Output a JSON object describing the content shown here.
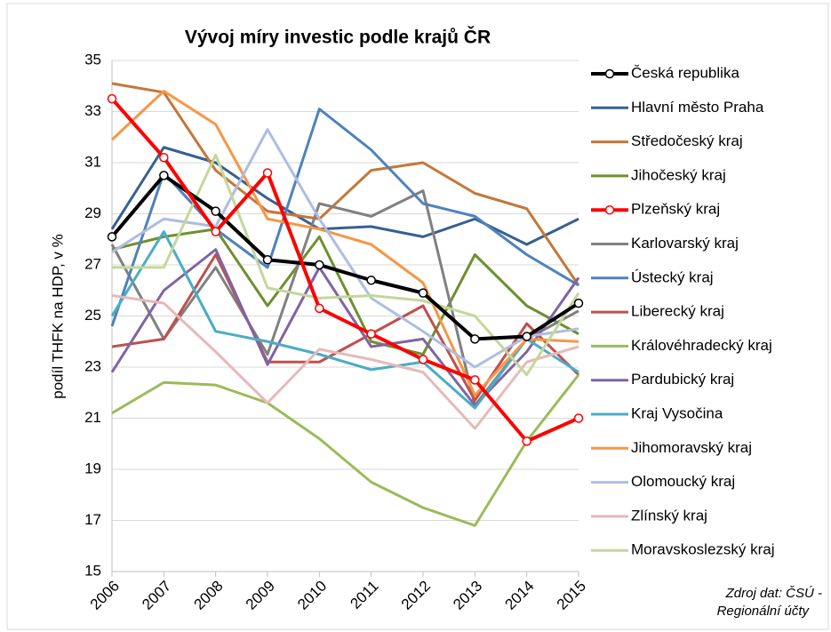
{
  "chart_data": {
    "type": "line",
    "title": "Vývoj míry investic podle krajů ČR",
    "y_label": "podíl THFK na HDP, v %",
    "source": [
      "Zdroj dat: ČSÚ -",
      "Regionální účty"
    ],
    "categories": [
      "2006",
      "2007",
      "2008",
      "2009",
      "2010",
      "2011",
      "2012",
      "2013",
      "2014",
      "2015"
    ],
    "ylim": [
      15,
      35
    ],
    "yticks": [
      15,
      17,
      19,
      21,
      23,
      25,
      27,
      29,
      31,
      33,
      35
    ],
    "grid": true,
    "legend": "right",
    "series": [
      {
        "name": "Česká republika",
        "color": "#000000",
        "marker": "circle",
        "values": [
          28.1,
          30.5,
          29.1,
          27.2,
          27.0,
          26.4,
          25.9,
          24.1,
          24.2,
          25.5
        ]
      },
      {
        "name": "Hlavní město Praha",
        "color": "#376092",
        "values": [
          28.4,
          31.6,
          31.0,
          29.6,
          28.4,
          28.5,
          28.1,
          28.8,
          27.8,
          28.8
        ]
      },
      {
        "name": "Středočeský kraj",
        "color": "#c4773a",
        "values": [
          34.1,
          33.75,
          30.7,
          29.1,
          28.8,
          30.7,
          31.0,
          29.8,
          29.2,
          26.2
        ]
      },
      {
        "name": "Jihočeský kraj",
        "color": "#6f8f30",
        "values": [
          27.6,
          28.1,
          28.4,
          25.4,
          28.1,
          24.0,
          23.5,
          27.4,
          25.4,
          24.3
        ]
      },
      {
        "name": "Plzeňský kraj",
        "color": "#ff0000",
        "marker": "circle",
        "values": [
          33.5,
          31.2,
          28.3,
          30.6,
          25.3,
          24.3,
          23.3,
          22.5,
          20.1,
          21.0
        ]
      },
      {
        "name": "Karlovarský kraj",
        "color": "#808080",
        "values": [
          27.8,
          24.1,
          26.9,
          23.5,
          29.4,
          28.9,
          29.9,
          21.5,
          24.1,
          25.2
        ]
      },
      {
        "name": "Ústecký kraj",
        "color": "#4f81bd",
        "values": [
          24.6,
          30.6,
          28.4,
          26.9,
          33.1,
          31.5,
          29.4,
          28.9,
          27.4,
          26.2
        ]
      },
      {
        "name": "Liberecký kraj",
        "color": "#c0504d",
        "values": [
          23.8,
          24.1,
          27.4,
          23.2,
          23.2,
          24.3,
          25.4,
          21.7,
          24.7,
          22.7
        ]
      },
      {
        "name": "Královéhradecký kraj",
        "color": "#9bbb59",
        "values": [
          21.2,
          22.4,
          22.3,
          21.6,
          20.2,
          18.5,
          17.5,
          16.8,
          20.1,
          22.7
        ]
      },
      {
        "name": "Pardubický kraj",
        "color": "#8064a2",
        "values": [
          22.8,
          26.0,
          27.6,
          23.1,
          26.9,
          23.8,
          24.1,
          21.5,
          23.6,
          26.5
        ]
      },
      {
        "name": "Kraj Vysočina",
        "color": "#4bacc6",
        "values": [
          25.0,
          28.3,
          24.4,
          24.0,
          23.5,
          22.9,
          23.2,
          21.4,
          24.1,
          22.8
        ]
      },
      {
        "name": "Jihomoravský kraj",
        "color": "#f79646",
        "values": [
          31.9,
          33.8,
          32.5,
          28.8,
          28.4,
          27.8,
          26.3,
          21.9,
          24.1,
          24.0
        ]
      },
      {
        "name": "Olomoucký kraj",
        "color": "#aebde0",
        "values": [
          27.5,
          28.8,
          28.5,
          32.3,
          28.8,
          25.7,
          24.4,
          23.0,
          24.2,
          24.5
        ]
      },
      {
        "name": "Zlínský kraj",
        "color": "#e6b9b8",
        "values": [
          25.8,
          25.5,
          23.6,
          21.6,
          23.7,
          23.3,
          22.8,
          20.6,
          23.2,
          23.8
        ]
      },
      {
        "name": "Moravskoslezský kraj",
        "color": "#c4d79b",
        "values": [
          26.9,
          26.9,
          31.3,
          26.1,
          25.7,
          25.8,
          25.6,
          25.0,
          22.7,
          25.9
        ]
      }
    ]
  }
}
